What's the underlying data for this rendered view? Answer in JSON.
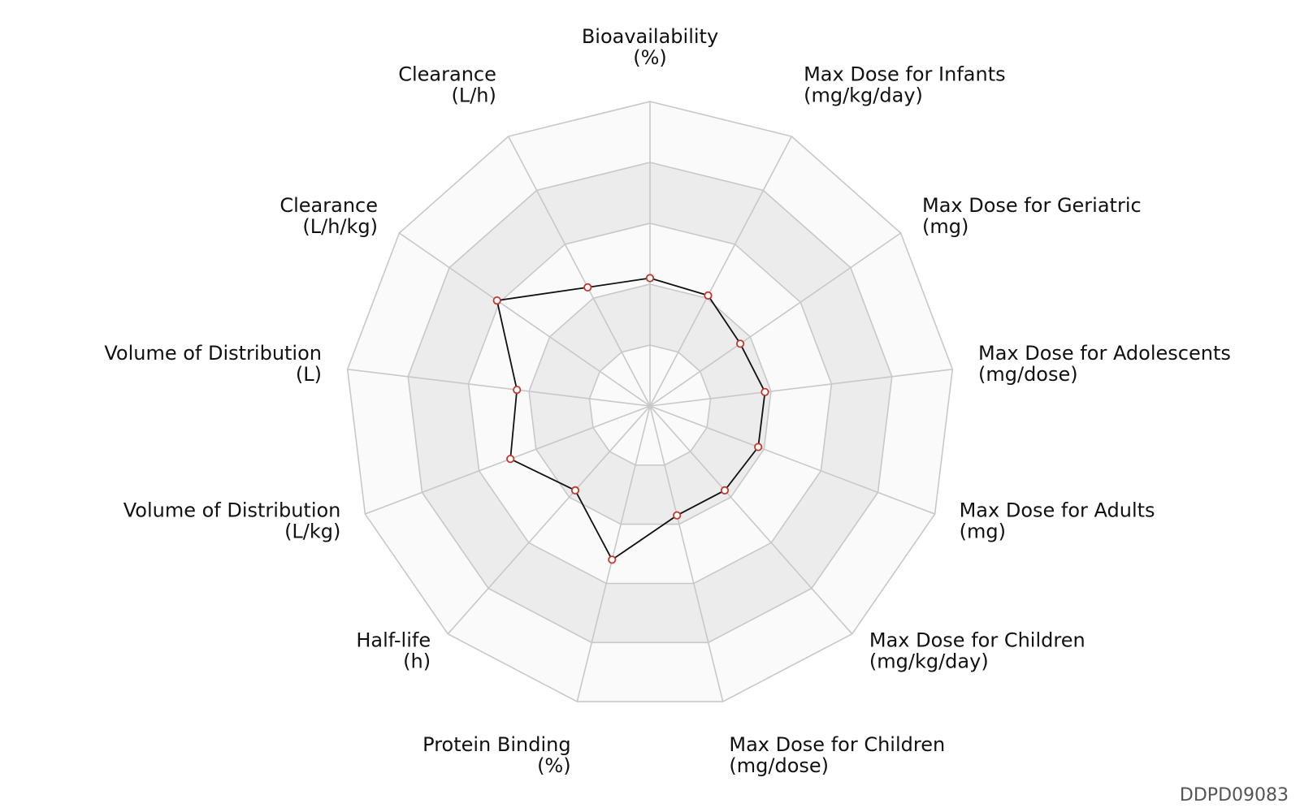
{
  "chart_data": {
    "type": "radar",
    "axes": [
      {
        "name": "Bioavailability",
        "unit": "(%)"
      },
      {
        "name": "Max Dose for Infants",
        "unit": "(mg/kg/day)"
      },
      {
        "name": "Max Dose for Geriatric",
        "unit": "(mg)"
      },
      {
        "name": "Max Dose for Adolescents",
        "unit": "(mg/dose)"
      },
      {
        "name": "Max Dose for Adults",
        "unit": "(mg)"
      },
      {
        "name": "Max Dose for Children",
        "unit": "(mg/kg/day)"
      },
      {
        "name": "Max Dose for Children",
        "unit": "(mg/dose)"
      },
      {
        "name": "Protein Binding",
        "unit": "(%)"
      },
      {
        "name": "Half-life",
        "unit": "(h)"
      },
      {
        "name": "Volume of Distribution",
        "unit": "(L/kg)"
      },
      {
        "name": "Volume of Distribution",
        "unit": "(L)"
      },
      {
        "name": "Clearance",
        "unit": "(L/h/kg)"
      },
      {
        "name": "Clearance",
        "unit": "(L/h)"
      }
    ],
    "values": [
      0.42,
      0.41,
      0.36,
      0.38,
      0.38,
      0.37,
      0.37,
      0.52,
      0.37,
      0.49,
      0.44,
      0.61,
      0.44
    ],
    "range": [
      0,
      1
    ],
    "rings": 5,
    "grid": true,
    "colors": {
      "line": "#111111",
      "marker_edge": "#c0392b",
      "marker_fill": "#ffffff",
      "band_light": "#fafafa",
      "band_dark": "#ececec",
      "grid": "#c8c8c8"
    }
  },
  "corner_id": "DDPD09083"
}
